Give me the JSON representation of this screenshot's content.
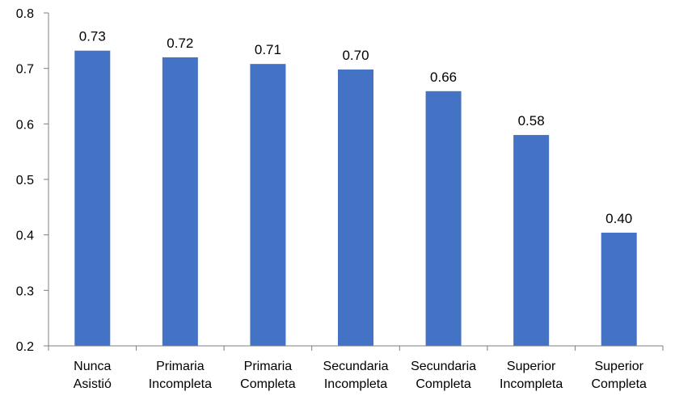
{
  "chart_data": {
    "type": "bar",
    "categories": [
      [
        "Nunca",
        "Asistió"
      ],
      [
        "Primaria",
        "Incompleta"
      ],
      [
        "Primaria",
        "Completa"
      ],
      [
        "Secundaria",
        "Incompleta"
      ],
      [
        "Secundaria",
        "Completa"
      ],
      [
        "Superior",
        "Incompleta"
      ],
      [
        "Superior",
        "Completa"
      ]
    ],
    "values": [
      0.732,
      0.72,
      0.708,
      0.698,
      0.659,
      0.58,
      0.404
    ],
    "data_labels": [
      "0.73",
      "0.72",
      "0.71",
      "0.70",
      "0.66",
      "0.58",
      "0.40"
    ],
    "ylim": [
      0.2,
      0.8
    ],
    "yticks": [
      "0.2",
      "0.3",
      "0.4",
      "0.5",
      "0.6",
      "0.7",
      "0.8"
    ],
    "title": "",
    "xlabel": "",
    "ylabel": "",
    "grid": false,
    "bar_color": "#4472C4"
  }
}
